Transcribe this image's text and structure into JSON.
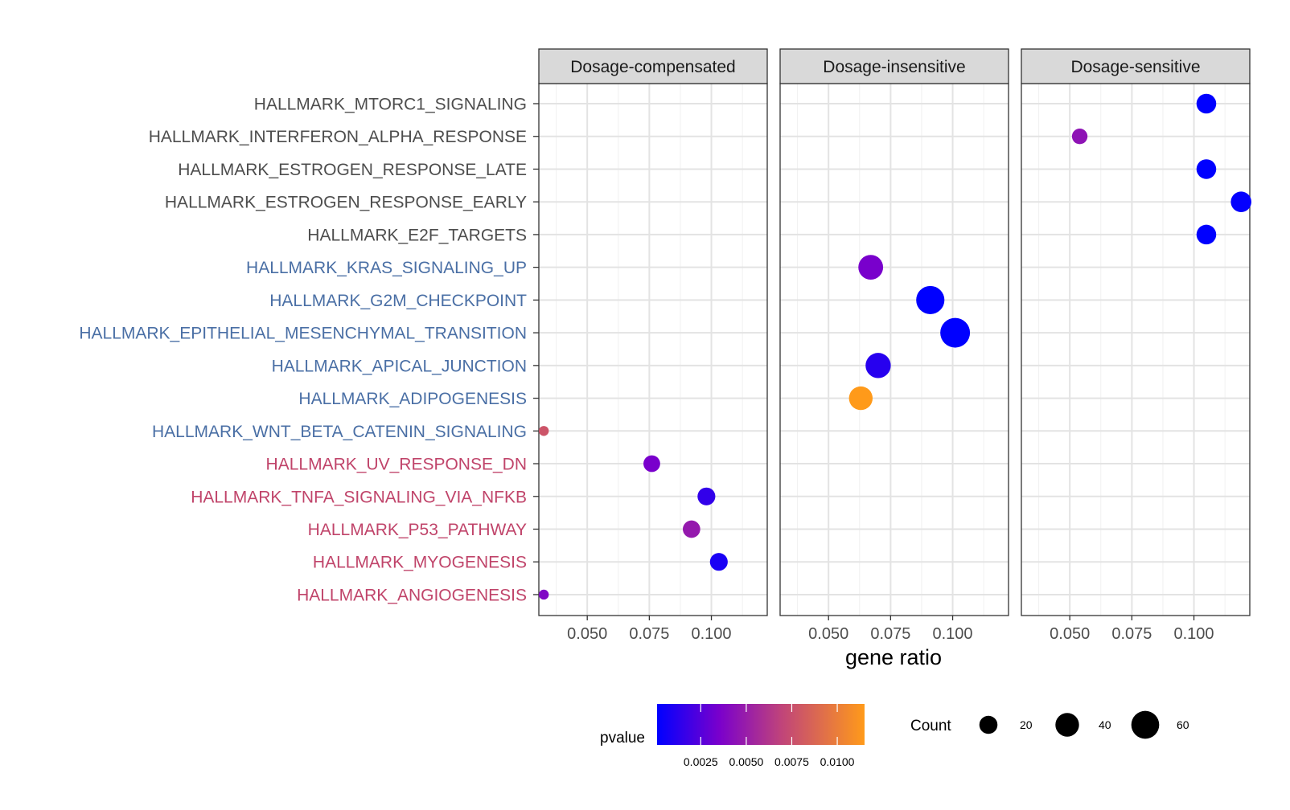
{
  "chart_data": {
    "type": "scatter",
    "xlabel": "gene ratio",
    "ylabel": "",
    "xlim": [
      0.0305,
      0.1225
    ],
    "x_ticks": [
      "0.050",
      "0.075",
      "0.100"
    ],
    "grid": true,
    "legend_position": "bottom",
    "facets": [
      "Dosage-compensated",
      "Dosage-insensitive",
      "Dosage-sensitive"
    ],
    "categories": [
      {
        "label": "HALLMARK_MTORC1_SIGNALING",
        "color": "#4d4d4d"
      },
      {
        "label": "HALLMARK_INTERFERON_ALPHA_RESPONSE",
        "color": "#4d4d4d"
      },
      {
        "label": "HALLMARK_ESTROGEN_RESPONSE_LATE",
        "color": "#4d4d4d"
      },
      {
        "label": "HALLMARK_ESTROGEN_RESPONSE_EARLY",
        "color": "#4d4d4d"
      },
      {
        "label": "HALLMARK_E2F_TARGETS",
        "color": "#4d4d4d"
      },
      {
        "label": "HALLMARK_KRAS_SIGNALING_UP",
        "color": "#4a6fa5"
      },
      {
        "label": "HALLMARK_G2M_CHECKPOINT",
        "color": "#4a6fa5"
      },
      {
        "label": "HALLMARK_EPITHELIAL_MESENCHYMAL_TRANSITION",
        "color": "#4a6fa5"
      },
      {
        "label": "HALLMARK_APICAL_JUNCTION",
        "color": "#4a6fa5"
      },
      {
        "label": "HALLMARK_ADIPOGENESIS",
        "color": "#4a6fa5"
      },
      {
        "label": "HALLMARK_WNT_BETA_CATENIN_SIGNALING",
        "color": "#4a6fa5"
      },
      {
        "label": "HALLMARK_UV_RESPONSE_DN",
        "color": "#c0446a"
      },
      {
        "label": "HALLMARK_TNFA_SIGNALING_VIA_NFKB",
        "color": "#c0446a"
      },
      {
        "label": "HALLMARK_P53_PATHWAY",
        "color": "#c0446a"
      },
      {
        "label": "HALLMARK_MYOGENESIS",
        "color": "#c0446a"
      },
      {
        "label": "HALLMARK_ANGIOGENESIS",
        "color": "#c0446a"
      }
    ],
    "points": [
      {
        "facet": 2,
        "row": 0,
        "x": 0.105,
        "count": 25,
        "pvalue": 0.0001
      },
      {
        "facet": 2,
        "row": 1,
        "x": 0.054,
        "count": 13,
        "pvalue": 0.0045
      },
      {
        "facet": 2,
        "row": 2,
        "x": 0.105,
        "count": 25,
        "pvalue": 0.0001
      },
      {
        "facet": 2,
        "row": 3,
        "x": 0.119,
        "count": 28,
        "pvalue": 0.0002
      },
      {
        "facet": 2,
        "row": 4,
        "x": 0.105,
        "count": 25,
        "pvalue": 0.0001
      },
      {
        "facet": 1,
        "row": 5,
        "x": 0.067,
        "count": 45,
        "pvalue": 0.0035
      },
      {
        "facet": 1,
        "row": 6,
        "x": 0.091,
        "count": 62,
        "pvalue": 0.0001
      },
      {
        "facet": 1,
        "row": 7,
        "x": 0.101,
        "count": 70,
        "pvalue": 0.0001
      },
      {
        "facet": 1,
        "row": 8,
        "x": 0.07,
        "count": 47,
        "pvalue": 0.0012
      },
      {
        "facet": 1,
        "row": 9,
        "x": 0.063,
        "count": 40,
        "pvalue": 0.0115
      },
      {
        "facet": 0,
        "row": 10,
        "x": 0.0325,
        "count": 3,
        "pvalue": 0.0078
      },
      {
        "facet": 0,
        "row": 11,
        "x": 0.076,
        "count": 16,
        "pvalue": 0.0035
      },
      {
        "facet": 0,
        "row": 12,
        "x": 0.098,
        "count": 19,
        "pvalue": 0.0015
      },
      {
        "facet": 0,
        "row": 13,
        "x": 0.092,
        "count": 18,
        "pvalue": 0.0048
      },
      {
        "facet": 0,
        "row": 14,
        "x": 0.103,
        "count": 19,
        "pvalue": 0.0008
      },
      {
        "facet": 0,
        "row": 15,
        "x": 0.0325,
        "count": 3,
        "pvalue": 0.0038
      }
    ],
    "color_legend": {
      "title": "pvalue",
      "range": [
        0.0001,
        0.0115
      ],
      "tick_values": [
        0.0025,
        0.005,
        0.0075,
        0.01
      ],
      "tick_labels": [
        "0.0025",
        "0.0050",
        "0.0075",
        "0.0100"
      ],
      "low_color": "#0000ff",
      "high_color": "#ffa500"
    },
    "size_legend": {
      "title": "Count",
      "values": [
        20,
        40,
        60
      ],
      "labels": [
        "20",
        "40",
        "60"
      ]
    }
  }
}
